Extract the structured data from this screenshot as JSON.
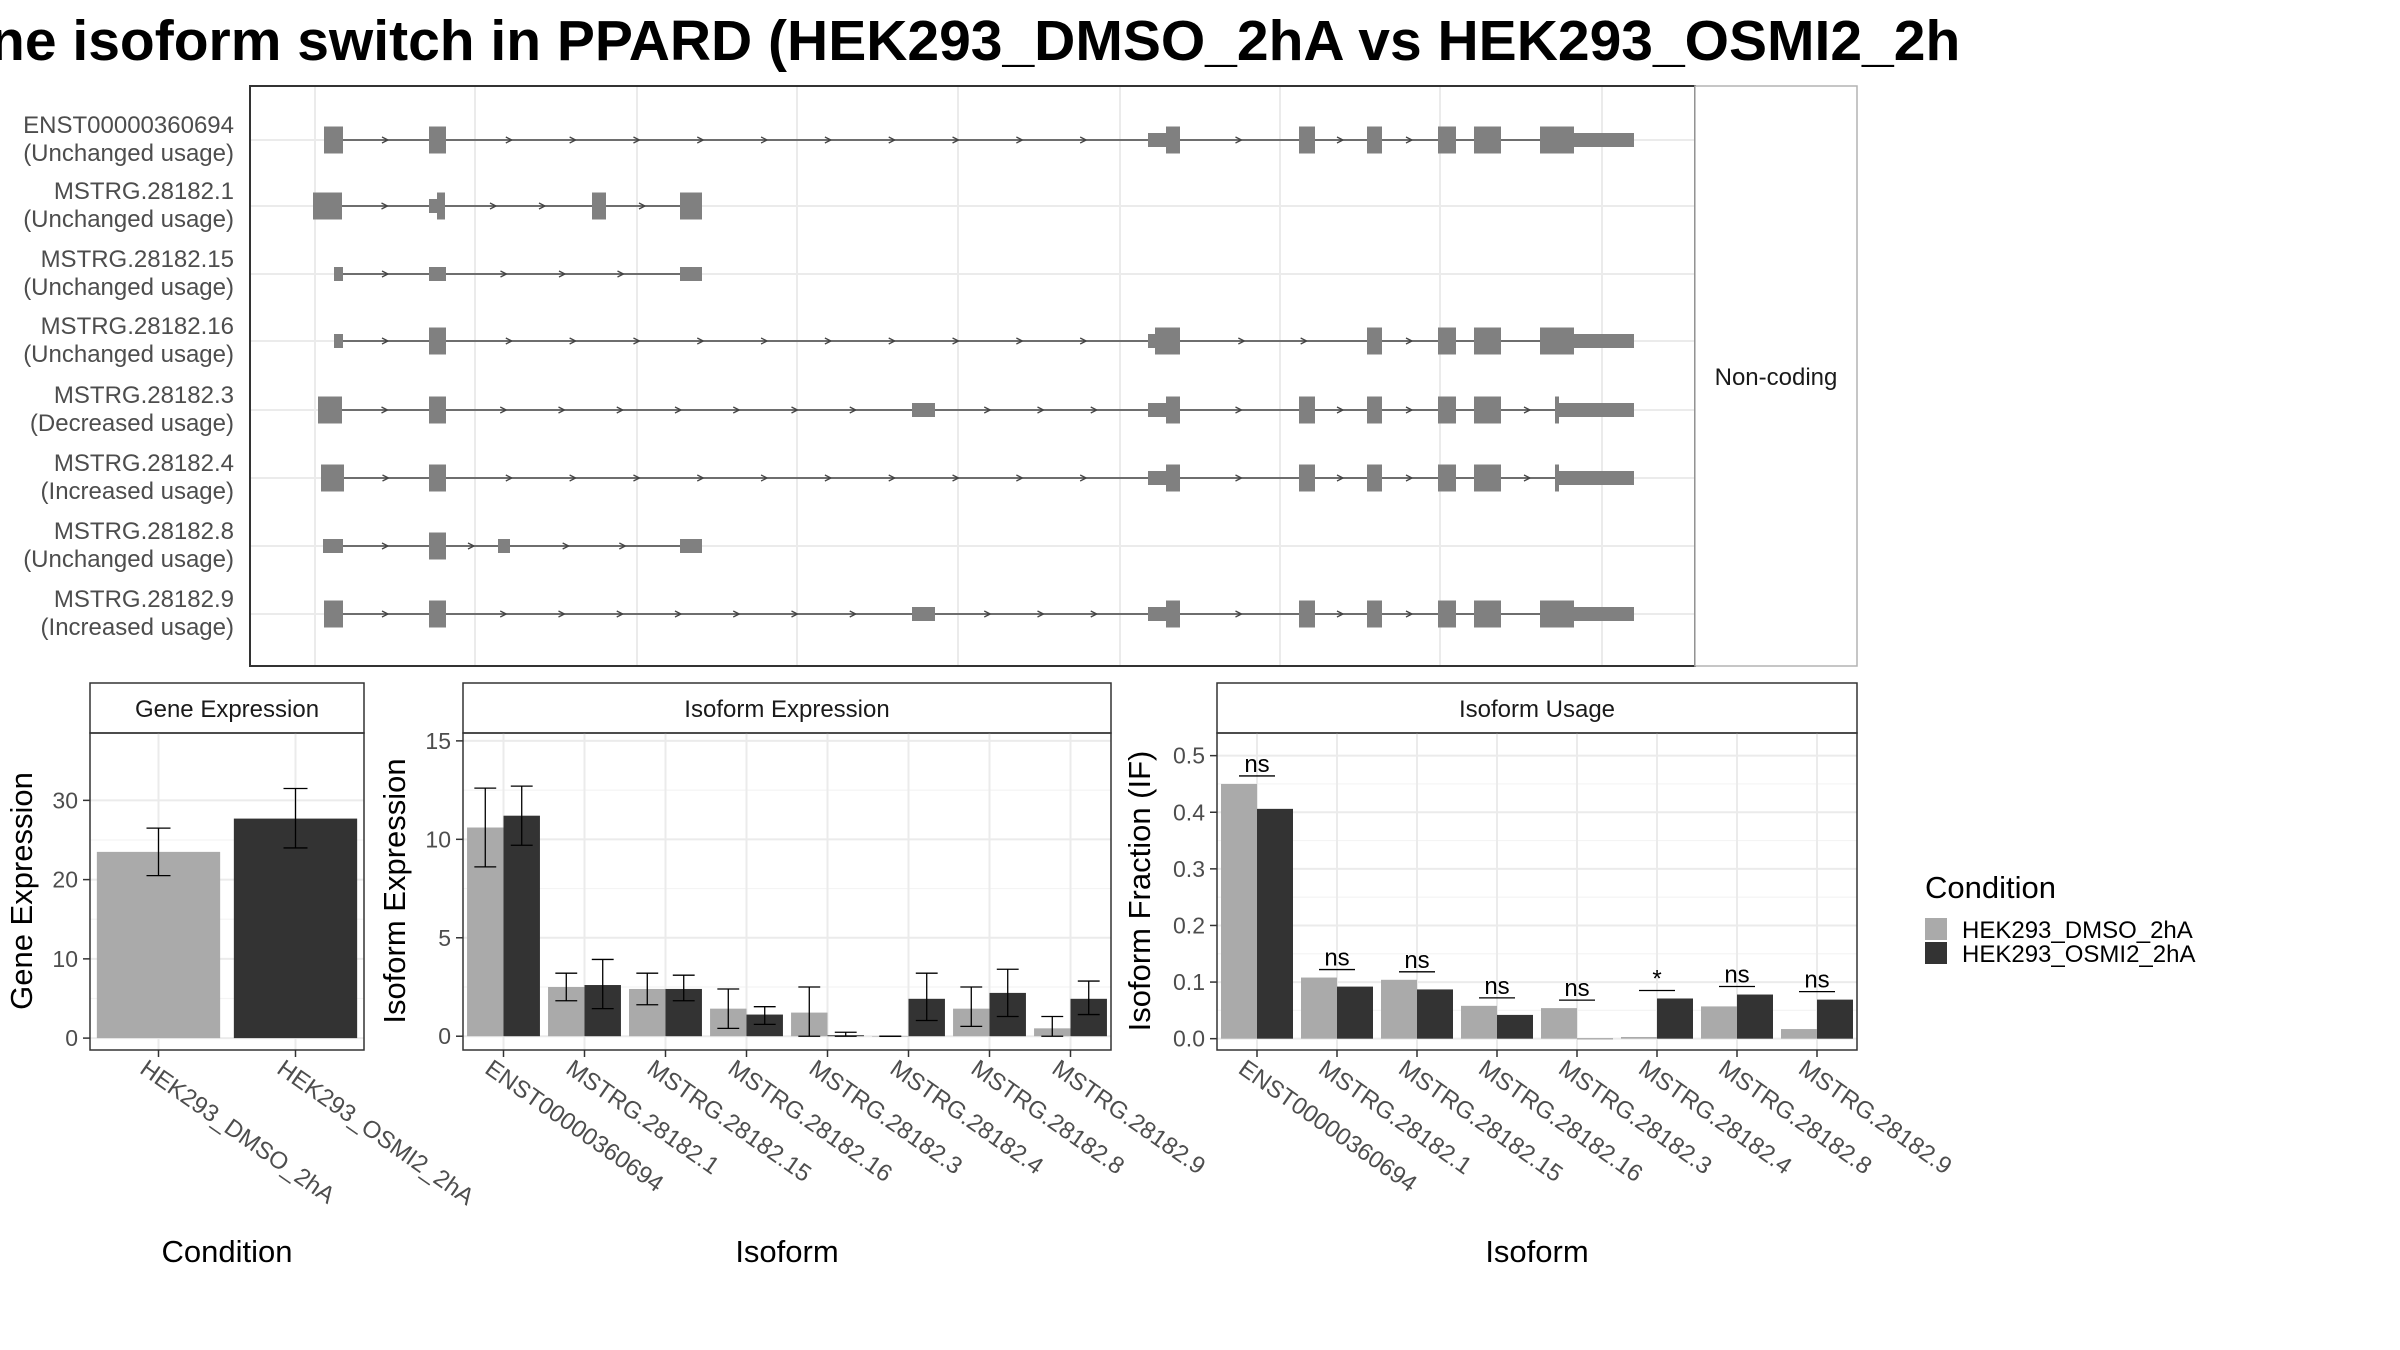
{
  "title": "ne isoform switch in PPARD (HEK293_DMSO_2hA vs HEK293_OSMI2_2h",
  "colors": {
    "dmso": "#aaaaaa",
    "osmi": "#333333",
    "exon": "#808080",
    "grid": "#ebebeb",
    "panel_border": "#333333",
    "strip_fill": "#ffffff"
  },
  "structure_panel": {
    "strip_label": "Non-coding",
    "isoforms": [
      {
        "id": "ENST00000360694",
        "usage": "(Unchanged usage)"
      },
      {
        "id": "MSTRG.28182.1",
        "usage": "(Unchanged usage)"
      },
      {
        "id": "MSTRG.28182.15",
        "usage": "(Unchanged usage)"
      },
      {
        "id": "MSTRG.28182.16",
        "usage": "(Unchanged usage)"
      },
      {
        "id": "MSTRG.28182.3",
        "usage": "(Decreased usage)"
      },
      {
        "id": "MSTRG.28182.4",
        "usage": "(Increased usage)"
      },
      {
        "id": "MSTRG.28182.8",
        "usage": "(Unchanged usage)"
      },
      {
        "id": "MSTRG.28182.9",
        "usage": "(Increased usage)"
      }
    ]
  },
  "legend": {
    "title": "Condition",
    "items": [
      "HEK293_DMSO_2hA",
      "HEK293_OSMI2_2hA"
    ]
  },
  "chart_data": [
    {
      "type": "bar",
      "title": "Gene Expression",
      "xlabel": "Condition",
      "ylabel": "Gene Expression",
      "categories": [
        "HEK293_DMSO_2hA",
        "HEK293_OSMI2_2hA"
      ],
      "values": [
        23.5,
        27.7
      ],
      "error_low": [
        20.5,
        24.0
      ],
      "error_high": [
        26.5,
        31.5
      ],
      "ylim": [
        -1.5,
        38.5
      ],
      "yticks": [
        0,
        10,
        20,
        30
      ],
      "grid": true
    },
    {
      "type": "bar",
      "title": "Isoform Expression",
      "xlabel": "Isoform",
      "ylabel": "Isoform Expression",
      "categories": [
        "ENST00000360694",
        "MSTRG.28182.1",
        "MSTRG.28182.15",
        "MSTRG.28182.16",
        "MSTRG.28182.3",
        "MSTRG.28182.4",
        "MSTRG.28182.8",
        "MSTRG.28182.9"
      ],
      "series": [
        {
          "name": "HEK293_DMSO_2hA",
          "values": [
            10.6,
            2.5,
            2.4,
            1.4,
            1.2,
            0.0,
            1.4,
            0.4
          ],
          "error_low": [
            8.6,
            1.8,
            1.6,
            0.4,
            0.0,
            0.0,
            0.5,
            0.0
          ],
          "error_high": [
            12.6,
            3.2,
            3.2,
            2.4,
            2.5,
            0.0,
            2.5,
            1.0
          ]
        },
        {
          "name": "HEK293_OSMI2_2hA",
          "values": [
            11.2,
            2.6,
            2.4,
            1.1,
            0.05,
            1.9,
            2.2,
            1.9
          ],
          "error_low": [
            9.7,
            1.4,
            1.8,
            0.6,
            0.0,
            0.8,
            1.0,
            1.1
          ],
          "error_high": [
            12.7,
            3.9,
            3.1,
            1.5,
            0.2,
            3.2,
            3.4,
            2.8
          ]
        }
      ],
      "ylim": [
        -0.7,
        15.4
      ],
      "yticks": [
        0,
        5,
        10,
        15
      ],
      "grid": true
    },
    {
      "type": "bar",
      "title": "Isoform Usage",
      "xlabel": "Isoform",
      "ylabel": "Isoform Fraction (IF)",
      "categories": [
        "ENST00000360694",
        "MSTRG.28182.1",
        "MSTRG.28182.15",
        "MSTRG.28182.16",
        "MSTRG.28182.3",
        "MSTRG.28182.4",
        "MSTRG.28182.8",
        "MSTRG.28182.9"
      ],
      "series": [
        {
          "name": "HEK293_DMSO_2hA",
          "values": [
            0.45,
            0.108,
            0.104,
            0.058,
            0.054,
            0.003,
            0.057,
            0.017
          ]
        },
        {
          "name": "HEK293_OSMI2_2hA",
          "values": [
            0.406,
            0.092,
            0.087,
            0.042,
            0.0,
            0.071,
            0.078,
            0.069
          ]
        }
      ],
      "significance": [
        "ns",
        "ns",
        "ns",
        "ns",
        "ns",
        "*",
        "ns",
        "ns"
      ],
      "ylim": [
        -0.02,
        0.54
      ],
      "yticks": [
        0.0,
        0.1,
        0.2,
        0.3,
        0.4,
        0.5
      ],
      "ytick_labels": [
        "0.0",
        "0.1",
        "0.2",
        "0.3",
        "0.4",
        "0.5"
      ],
      "grid": true
    }
  ]
}
